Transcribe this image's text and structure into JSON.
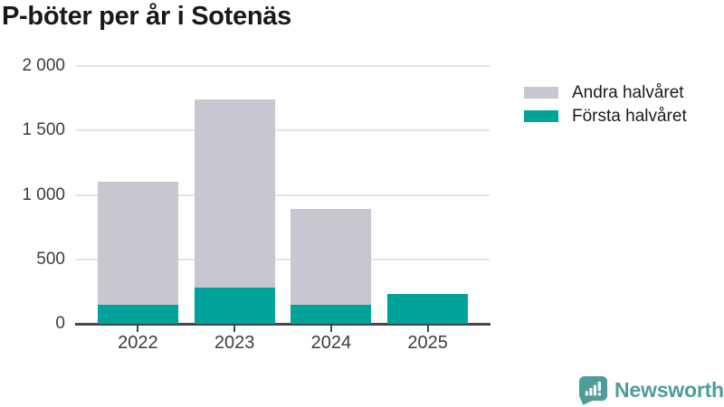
{
  "title": "P-böter per år i Sotenäs",
  "chart_data": {
    "type": "bar",
    "stacked": true,
    "title": "P-böter per år i Sotenäs",
    "categories": [
      "2022",
      "2023",
      "2024",
      "2025"
    ],
    "series": [
      {
        "name": "Första halvåret",
        "color": "#00a39a",
        "values": [
          145,
          280,
          150,
          230
        ]
      },
      {
        "name": "Andra halvåret",
        "color": "#c8c6d0",
        "values": [
          955,
          1460,
          740,
          0
        ]
      }
    ],
    "xlabel": "",
    "ylabel": "",
    "ylim": [
      0,
      2000
    ],
    "yticks": [
      {
        "value": 0,
        "label": "0"
      },
      {
        "value": 500,
        "label": "500"
      },
      {
        "value": 1000,
        "label": "1 000"
      },
      {
        "value": 1500,
        "label": "1 500"
      },
      {
        "value": 2000,
        "label": "2 000"
      }
    ],
    "grid": true,
    "legend_position": "right"
  },
  "legend": {
    "items": [
      {
        "label": "Andra halvåret",
        "color": "#c8c6d0"
      },
      {
        "label": "Första halvåret",
        "color": "#00a39a"
      }
    ]
  },
  "footer": {
    "brand": "Newsworthy"
  },
  "colors": {
    "first_half": "#00a39a",
    "second_half": "#c8c6d0",
    "axis": "#454545",
    "grid": "#e4e3e8",
    "title_text": "#191919",
    "brand": "#4f9d98"
  }
}
